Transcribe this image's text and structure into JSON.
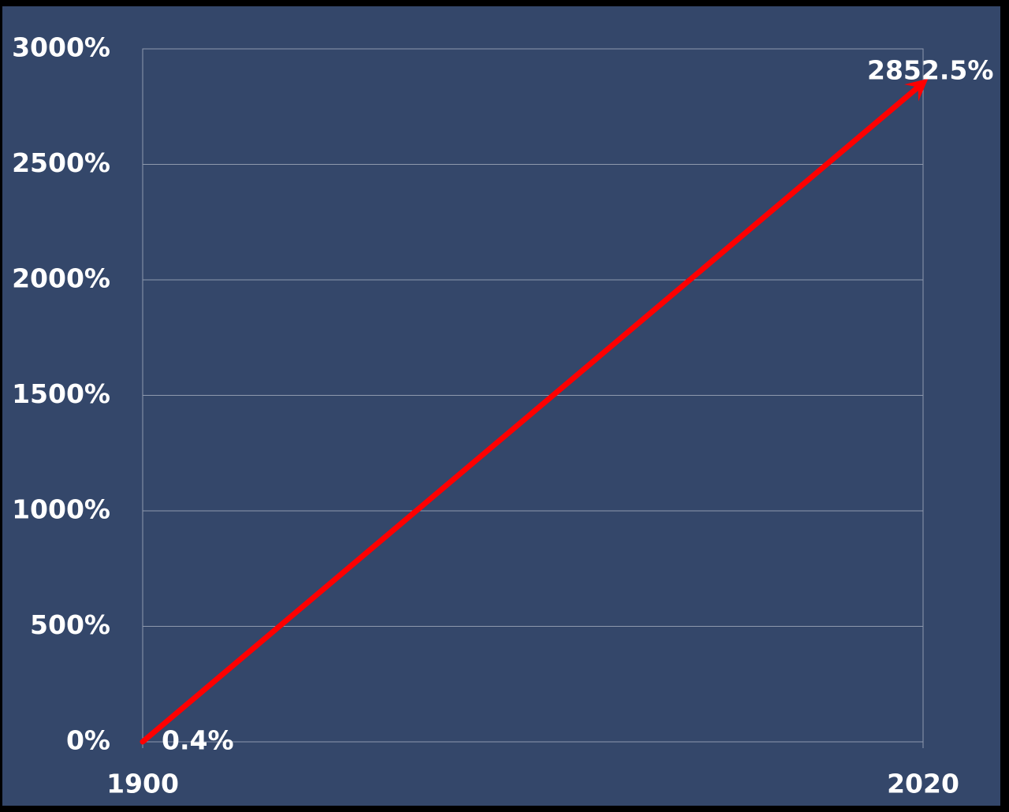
{
  "colors": {
    "background": "#34476a",
    "frame": "#000000",
    "grid": "#8e99ad",
    "line": "#ff0000",
    "text": "#ffffff"
  },
  "chart_data": {
    "type": "line",
    "x": [
      1900,
      2020
    ],
    "y": [
      0.4,
      2852.5
    ],
    "xlim": [
      1900,
      2020
    ],
    "ylim": [
      0,
      3000
    ],
    "x_ticks": [
      "1900",
      "2020"
    ],
    "y_ticks": [
      "0%",
      "500%",
      "1000%",
      "1500%",
      "2000%",
      "2500%",
      "3000%"
    ],
    "y_tick_values": [
      0,
      500,
      1000,
      1500,
      2000,
      2500,
      3000
    ],
    "data_labels": [
      "0.4%",
      "2852.5%"
    ],
    "line_style": "arrow",
    "grid": true,
    "title": "",
    "xlabel": "",
    "ylabel": ""
  }
}
